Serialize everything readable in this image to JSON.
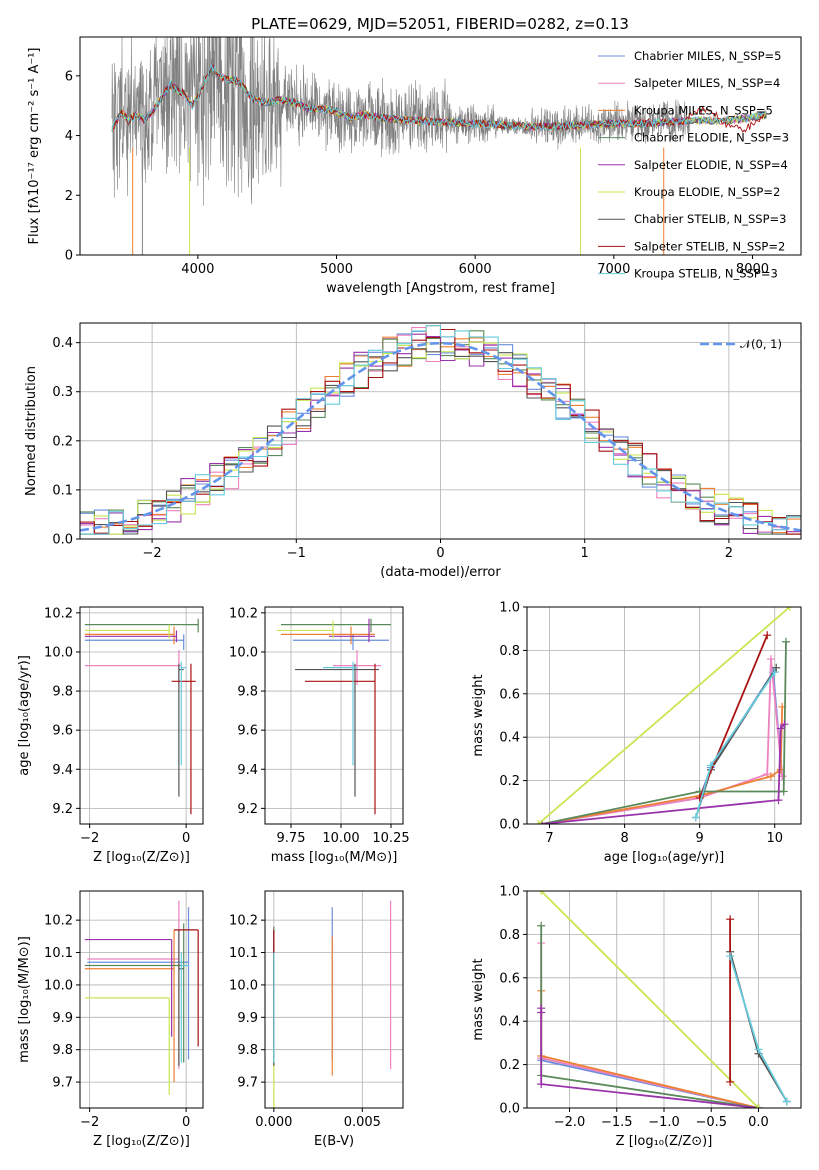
{
  "figure_title": "PLATE=0629, MJD=52051, FIBERID=0282, z=0.13",
  "colors": {
    "chabrier_miles": "#6b8fdd",
    "salpeter_miles": "#ee82c0",
    "kroupa_miles": "#ee8033",
    "chabrier_elodie": "#5a8a5a",
    "salpeter_elodie": "#9933aa",
    "kroupa_elodie": "#c8e650",
    "chabrier_stelib": "#555555",
    "salpeter_stelib": "#aa1111",
    "kroupa_stelib": "#66ccdd",
    "data": "#808080",
    "normal": "#6495ed"
  },
  "chart_data": [
    {
      "id": "spectrum",
      "type": "line",
      "title": "PLATE=0629, MJD=52051, FIBERID=0282, z=0.13",
      "xlabel": "wavelength [Angstrom, rest frame]",
      "ylabel": "Flux [fλ10⁻¹⁷ erg cm⁻² s⁻¹ A⁻¹]",
      "xlim": [
        3150,
        8350
      ],
      "ylim": [
        0,
        7.3
      ],
      "xticks": [
        4000,
        5000,
        6000,
        7000,
        8000
      ],
      "yticks": [
        0,
        2,
        4,
        6
      ],
      "legend_position": "right",
      "legend": [
        {
          "label": "Chabrier MILES, N_SSP=5",
          "key": "chabrier_miles"
        },
        {
          "label": "Salpeter MILES, N_SSP=4",
          "key": "salpeter_miles"
        },
        {
          "label": "Kroupa MILES, N_SSP=5",
          "key": "kroupa_miles"
        },
        {
          "label": "Chabrier ELODIE, N_SSP=3",
          "key": "chabrier_elodie"
        },
        {
          "label": "Salpeter ELODIE, N_SSP=4",
          "key": "salpeter_elodie"
        },
        {
          "label": "Kroupa ELODIE, N_SSP=2",
          "key": "kroupa_elodie"
        },
        {
          "label": "Chabrier STELIB, N_SSP=3",
          "key": "chabrier_stelib"
        },
        {
          "label": "Salpeter STELIB, N_SSP=2",
          "key": "salpeter_stelib"
        },
        {
          "label": "Kroupa STELIB, N_SSP=3",
          "key": "kroupa_stelib"
        }
      ],
      "model_curve": {
        "x": [
          3380,
          3450,
          3500,
          3560,
          3620,
          3700,
          3800,
          3900,
          3960,
          4000,
          4100,
          4150,
          4200,
          4300,
          4400,
          4500,
          4600,
          4700,
          4800,
          4900,
          5000,
          5100,
          5200,
          5400,
          5600,
          5800,
          6000,
          6200,
          6400,
          6600,
          6800,
          7000,
          7200,
          7400,
          7600,
          7800,
          8000,
          8100
        ],
        "y": [
          4.2,
          4.8,
          4.5,
          4.7,
          4.5,
          5.0,
          5.7,
          5.4,
          5.0,
          5.3,
          6.3,
          6.0,
          5.9,
          5.8,
          5.2,
          5.1,
          5.2,
          5.1,
          4.9,
          4.9,
          4.8,
          4.6,
          4.7,
          4.55,
          4.5,
          4.45,
          4.4,
          4.35,
          4.3,
          4.3,
          4.35,
          4.4,
          4.4,
          4.45,
          4.5,
          4.5,
          4.6,
          4.7
        ]
      },
      "data_range": [
        3380,
        7550
      ]
    },
    {
      "id": "residuals",
      "type": "histogram",
      "xlabel": "(data-model)/error",
      "ylabel": "Normed distribution",
      "xlim": [
        -2.5,
        2.5
      ],
      "ylim": [
        0,
        0.44
      ],
      "xticks": [
        -2,
        -1,
        0,
        1,
        2
      ],
      "yticks": [
        0.0,
        0.1,
        0.2,
        0.3,
        0.4
      ],
      "legend": "𝒩(0, 1)",
      "legend_position": "top-right",
      "bin_width": 0.1,
      "normal_pdf": {
        "mean": 0,
        "sigma": 1
      }
    },
    {
      "id": "age_vs_Z",
      "type": "errorbar",
      "xlabel": "Z [log₁₀(Z/Z⊙)]",
      "ylabel": "age  [log₁₀(age/yr)]",
      "xlim": [
        -2.2,
        0.35
      ],
      "ylim": [
        9.12,
        10.23
      ],
      "xticks": [
        -2,
        0
      ],
      "yticks": [
        9.2,
        9.4,
        9.6,
        9.8,
        10.0,
        10.2
      ],
      "points": [
        {
          "key": "chabrier_miles",
          "x": -0.05,
          "xerr": [
            2.05,
            0.0
          ],
          "y": 10.06,
          "yerr": [
            0.05,
            0.03
          ]
        },
        {
          "key": "salpeter_miles",
          "x": -0.15,
          "xerr": [
            1.95,
            0.05
          ],
          "y": 9.93,
          "yerr": [
            0.1,
            0.08
          ]
        },
        {
          "key": "kroupa_miles",
          "x": -0.25,
          "xerr": [
            1.85,
            0.0
          ],
          "y": 10.09,
          "yerr": [
            0.05,
            0.04
          ]
        },
        {
          "key": "chabrier_elodie",
          "x": 0.25,
          "xerr": [
            2.35,
            0.0
          ],
          "y": 10.14,
          "yerr": [
            0.04,
            0.03
          ]
        },
        {
          "key": "salpeter_elodie",
          "x": -0.2,
          "xerr": [
            1.9,
            0.0
          ],
          "y": 10.08,
          "yerr": [
            0.03,
            0.03
          ]
        },
        {
          "key": "kroupa_elodie",
          "x": -0.35,
          "xerr": [
            1.75,
            0.0
          ],
          "y": 10.11,
          "yerr": [
            0.04,
            0.03
          ]
        },
        {
          "key": "chabrier_stelib",
          "x": -0.15,
          "xerr": [
            0.0,
            0.1
          ],
          "y": 9.91,
          "yerr": [
            0.65,
            0.03
          ]
        },
        {
          "key": "salpeter_stelib",
          "x": 0.1,
          "xerr": [
            0.4,
            0.1
          ],
          "y": 9.85,
          "yerr": [
            0.68,
            0.09
          ]
        },
        {
          "key": "kroupa_stelib",
          "x": -0.1,
          "xerr": [
            0.0,
            0.1
          ],
          "y": 9.92,
          "yerr": [
            0.5,
            0.03
          ]
        }
      ]
    },
    {
      "id": "age_vs_mass",
      "type": "errorbar",
      "xlabel": "mass [log₁₀(M/M⊙)]",
      "ylabel": "",
      "xlim": [
        9.62,
        10.31
      ],
      "ylim": [
        9.12,
        10.23
      ],
      "xticks": [
        9.75,
        10.0,
        10.25
      ],
      "yticks": [
        9.2,
        9.4,
        9.6,
        9.8,
        10.0,
        10.2
      ],
      "points": [
        {
          "key": "chabrier_miles",
          "x": 10.06,
          "xerr": [
            0.3,
            0.18
          ],
          "y": 10.06,
          "yerr": [
            0.05,
            0.03
          ]
        },
        {
          "key": "salpeter_miles",
          "x": 10.08,
          "xerr": [
            0.12,
            0.12
          ],
          "y": 9.93,
          "yerr": [
            0.1,
            0.08
          ]
        },
        {
          "key": "kroupa_miles",
          "x": 10.05,
          "xerr": [
            0.35,
            0.12
          ],
          "y": 10.09,
          "yerr": [
            0.05,
            0.04
          ]
        },
        {
          "key": "chabrier_elodie",
          "x": 10.15,
          "xerr": [
            0.45,
            0.1
          ],
          "y": 10.14,
          "yerr": [
            0.04,
            0.03
          ]
        },
        {
          "key": "salpeter_elodie",
          "x": 10.14,
          "xerr": [
            0.2,
            0.03
          ],
          "y": 10.08,
          "yerr": [
            0.03,
            0.09
          ]
        },
        {
          "key": "kroupa_elodie",
          "x": 9.96,
          "xerr": [
            0.28,
            0.0
          ],
          "y": 10.11,
          "yerr": [
            0.04,
            0.05
          ]
        },
        {
          "key": "chabrier_stelib",
          "x": 10.07,
          "xerr": [
            0.3,
            0.12
          ],
          "y": 9.91,
          "yerr": [
            0.65,
            0.03
          ]
        },
        {
          "key": "salpeter_stelib",
          "x": 10.17,
          "xerr": [
            0.35,
            0.0
          ],
          "y": 9.85,
          "yerr": [
            0.68,
            0.09
          ]
        },
        {
          "key": "kroupa_stelib",
          "x": 10.06,
          "xerr": [
            0.15,
            0.02
          ],
          "y": 9.92,
          "yerr": [
            0.5,
            0.03
          ]
        }
      ]
    },
    {
      "id": "weight_vs_age",
      "type": "line",
      "xlabel": "age  [log₁₀(age/yr)]",
      "ylabel": "mass weight",
      "xlim": [
        6.7,
        10.35
      ],
      "ylim": [
        0,
        1.0
      ],
      "xticks": [
        7,
        8,
        9,
        10
      ],
      "yticks": [
        0.0,
        0.2,
        0.4,
        0.6,
        0.8,
        1.0
      ],
      "series": [
        {
          "key": "chabrier_miles",
          "x": [
            6.9,
            9.0,
            9.15,
            9.98,
            10.1
          ],
          "y": [
            0.0,
            0.12,
            0.26,
            0.7,
            0.22
          ]
        },
        {
          "key": "salpeter_miles",
          "x": [
            6.9,
            9.0,
            9.9,
            9.95,
            10.1
          ],
          "y": [
            0.0,
            0.12,
            0.23,
            0.76,
            0.22
          ]
        },
        {
          "key": "kroupa_miles",
          "x": [
            6.9,
            9.0,
            9.95,
            10.08,
            10.1
          ],
          "y": [
            0.0,
            0.13,
            0.22,
            0.25,
            0.54
          ]
        },
        {
          "key": "chabrier_elodie",
          "x": [
            6.9,
            9.0,
            10.12,
            10.15
          ],
          "y": [
            0.0,
            0.15,
            0.15,
            0.84
          ]
        },
        {
          "key": "salpeter_elodie",
          "x": [
            6.9,
            10.05,
            10.08,
            10.13
          ],
          "y": [
            0.0,
            0.11,
            0.44,
            0.46
          ]
        },
        {
          "key": "kroupa_elodie",
          "x": [
            6.85,
            10.2
          ],
          "y": [
            0.0,
            1.0
          ]
        },
        {
          "key": "chabrier_stelib",
          "x": [
            8.95,
            9.15,
            10.02
          ],
          "y": [
            0.03,
            0.25,
            0.72
          ]
        },
        {
          "key": "salpeter_stelib",
          "x": [
            9.0,
            9.9
          ],
          "y": [
            0.12,
            0.87
          ]
        },
        {
          "key": "kroupa_stelib",
          "x": [
            8.95,
            9.15,
            10.0
          ],
          "y": [
            0.03,
            0.27,
            0.7
          ]
        }
      ]
    },
    {
      "id": "mass_vs_Z",
      "type": "errorbar",
      "xlabel": "Z [log₁₀(Z/Z⊙)]",
      "ylabel": "mass [log₁₀(M/M⊙)]",
      "xlim": [
        -2.2,
        0.35
      ],
      "ylim": [
        9.62,
        10.29
      ],
      "xticks": [
        -2,
        0
      ],
      "yticks": [
        9.7,
        9.8,
        9.9,
        10.0,
        10.1,
        10.2
      ],
      "points": [
        {
          "key": "chabrier_miles",
          "x": 0.05,
          "xerr": [
            2.1,
            0.0
          ],
          "y": 10.07,
          "yerr": [
            0.3,
            0.17
          ]
        },
        {
          "key": "salpeter_miles",
          "x": -0.15,
          "xerr": [
            1.9,
            0.0
          ],
          "y": 10.08,
          "yerr": [
            0.34,
            0.18
          ]
        },
        {
          "key": "kroupa_miles",
          "x": -0.25,
          "xerr": [
            1.85,
            0.0
          ],
          "y": 10.05,
          "yerr": [
            0.35,
            0.12
          ]
        },
        {
          "key": "chabrier_elodie",
          "x": -0.05,
          "xerr": [
            2.05,
            0.05
          ],
          "y": 10.06,
          "yerr": [
            0.3,
            0.13
          ]
        },
        {
          "key": "salpeter_elodie",
          "x": -0.3,
          "xerr": [
            1.8,
            0.0
          ],
          "y": 10.14,
          "yerr": [
            0.3,
            0.0
          ]
        },
        {
          "key": "kroupa_elodie",
          "x": -0.35,
          "xerr": [
            1.75,
            0.0
          ],
          "y": 9.96,
          "yerr": [
            0.3,
            0.0
          ]
        },
        {
          "key": "chabrier_stelib",
          "x": -0.15,
          "xerr": [
            0.0,
            0.1
          ],
          "y": 10.05,
          "yerr": [
            0.3,
            0.12
          ]
        },
        {
          "key": "salpeter_stelib",
          "x": 0.25,
          "xerr": [
            0.5,
            0.0
          ],
          "y": 10.17,
          "yerr": [
            0.36,
            0.0
          ]
        },
        {
          "key": "kroupa_stelib",
          "x": -0.1,
          "xerr": [
            0.0,
            0.15
          ],
          "y": 10.06,
          "yerr": [
            0.3,
            0.04
          ]
        }
      ]
    },
    {
      "id": "mass_vs_ebv",
      "type": "errorbar",
      "xlabel": "E(B-V)",
      "ylabel": "",
      "xlim": [
        -0.0005,
        0.0073
      ],
      "ylim": [
        9.62,
        10.29
      ],
      "xticks": [
        0.0,
        0.005
      ],
      "xtick_labels": [
        "0.000",
        "0.005"
      ],
      "yticks": [
        9.7,
        9.8,
        9.9,
        10.0,
        10.1,
        10.2
      ],
      "points": [
        {
          "key": "chabrier_miles",
          "x": 0.0033,
          "y": 10.07,
          "yerr": [
            0.3,
            0.17
          ]
        },
        {
          "key": "salpeter_miles",
          "x": 0.0066,
          "y": 10.08,
          "yerr": [
            0.34,
            0.18
          ]
        },
        {
          "key": "kroupa_miles",
          "x": 0.0033,
          "y": 10.05,
          "yerr": [
            0.33,
            0.1
          ]
        },
        {
          "key": "chabrier_elodie",
          "x": 0.0,
          "y": 10.06,
          "yerr": [
            0.3,
            0.12
          ]
        },
        {
          "key": "salpeter_elodie",
          "x": 0.0,
          "y": 10.14,
          "yerr": [
            0.3,
            0.0
          ]
        },
        {
          "key": "kroupa_elodie",
          "x": 0.0,
          "y": 9.96,
          "yerr": [
            0.34,
            0.0
          ]
        },
        {
          "key": "chabrier_stelib",
          "x": 0.0,
          "y": 10.05,
          "yerr": [
            0.3,
            0.12
          ]
        },
        {
          "key": "salpeter_stelib",
          "x": 0.0,
          "y": 10.17,
          "yerr": [
            0.36,
            0.0
          ]
        },
        {
          "key": "kroupa_stelib",
          "x": 0.0,
          "y": 10.06,
          "yerr": [
            0.3,
            0.04
          ]
        }
      ]
    },
    {
      "id": "weight_vs_Z",
      "type": "line",
      "xlabel": "Z [log₁₀(Z/Z⊙)]",
      "ylabel": "mass weight",
      "xlim": [
        -2.45,
        0.45
      ],
      "ylim": [
        0,
        1.0
      ],
      "xticks": [
        -2.0,
        -1.5,
        -1.0,
        -0.5,
        0.0
      ],
      "xtick_labels": [
        "−2.0",
        "−1.5",
        "−1.0",
        "−0.5",
        "0.0"
      ],
      "yticks": [
        0.0,
        0.2,
        0.4,
        0.6,
        0.8,
        1.0
      ],
      "series": [
        {
          "key": "chabrier_miles",
          "x": [
            -2.3,
            0.0
          ],
          "y": [
            0.22,
            0.0
          ]
        },
        {
          "key": "salpeter_miles",
          "x": [
            -2.3,
            -2.3,
            0.0
          ],
          "y": [
            0.76,
            0.23,
            0.0
          ]
        },
        {
          "key": "kroupa_miles",
          "x": [
            -2.3,
            -2.3,
            0.0
          ],
          "y": [
            0.54,
            0.24,
            0.0
          ]
        },
        {
          "key": "chabrier_elodie",
          "x": [
            -2.3,
            -2.3,
            0.0
          ],
          "y": [
            0.84,
            0.15,
            0.0
          ]
        },
        {
          "key": "salpeter_elodie",
          "x": [
            -2.3,
            -2.3,
            -2.3,
            0.0
          ],
          "y": [
            0.46,
            0.44,
            0.11,
            0.0
          ]
        },
        {
          "key": "kroupa_elodie",
          "x": [
            -2.3,
            0.0
          ],
          "y": [
            1.0,
            0.0
          ]
        },
        {
          "key": "chabrier_stelib",
          "x": [
            -0.3,
            0.0,
            0.3
          ],
          "y": [
            0.72,
            0.25,
            0.03
          ]
        },
        {
          "key": "salpeter_stelib",
          "x": [
            -0.3,
            -0.3
          ],
          "y": [
            0.87,
            0.12
          ]
        },
        {
          "key": "kroupa_stelib",
          "x": [
            -0.3,
            0.0,
            0.3
          ],
          "y": [
            0.7,
            0.27,
            0.03
          ]
        }
      ]
    }
  ]
}
